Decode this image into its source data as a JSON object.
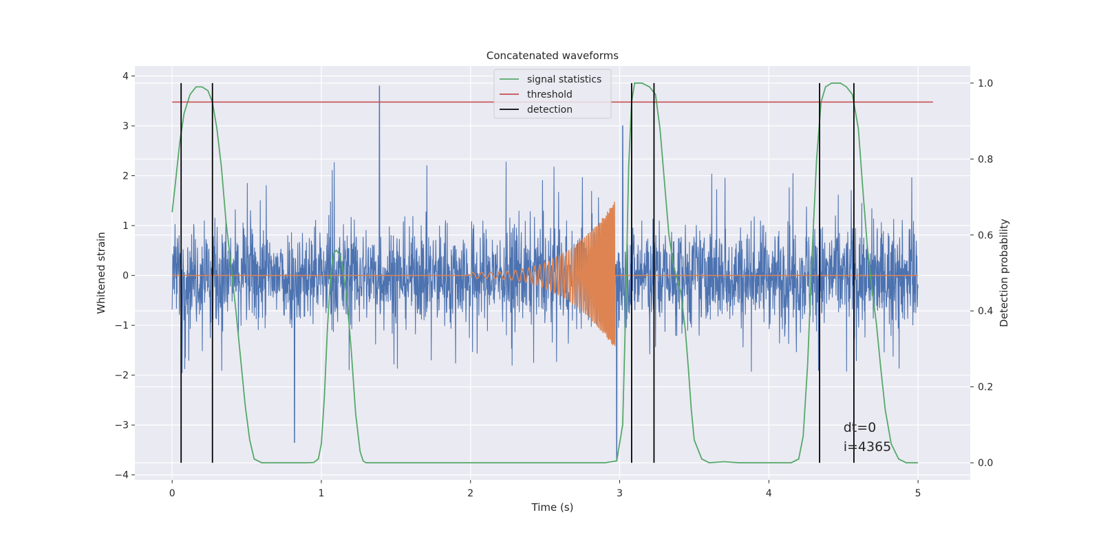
{
  "chart_data": {
    "type": "line",
    "title": "Concatenated waveforms",
    "xlabel": "Time (s)",
    "ylabel": "Whitened strain",
    "ylabel_right": "Detection probability",
    "xlim": [
      -0.25,
      5.35
    ],
    "ylim": [
      -4.1,
      4.2
    ],
    "ylim_right": [
      -0.045,
      1.045
    ],
    "xticks": [
      0,
      1,
      2,
      3,
      4,
      5
    ],
    "yticks": [
      -4,
      -3,
      -2,
      -1,
      0,
      1,
      2,
      3,
      4
    ],
    "yticks_right": [
      0.0,
      0.2,
      0.4,
      0.6,
      0.8,
      1.0
    ],
    "xtick_labels": [
      "0",
      "1",
      "2",
      "3",
      "4",
      "5"
    ],
    "ytick_labels": [
      "−4",
      "−3",
      "−2",
      "−1",
      "0",
      "1",
      "2",
      "3",
      "4"
    ],
    "ytick_right_labels": [
      "0.0",
      "0.2",
      "0.4",
      "0.6",
      "0.8",
      "1.0"
    ],
    "grid": true,
    "legend_position": "top-center",
    "colors": {
      "strain": "#4c72b0",
      "template": "#dd8452",
      "signal_statistics": "#55a868",
      "threshold": "#c44e52",
      "detection": "#000000",
      "axes_bg": "#eaeaf2",
      "grid": "#ffffff"
    },
    "legend": [
      {
        "label": "signal statistics",
        "color": "#55a868"
      },
      {
        "label": "threshold",
        "color": "#c44e52"
      },
      {
        "label": "detection",
        "color": "#000000"
      }
    ],
    "series": [
      {
        "name": "signal statistics",
        "axis": "right",
        "x": [
          0.0,
          0.02,
          0.05,
          0.08,
          0.12,
          0.16,
          0.2,
          0.24,
          0.27,
          0.3,
          0.33,
          0.36,
          0.4,
          0.43,
          0.46,
          0.49,
          0.52,
          0.55,
          0.6,
          0.7,
          0.8,
          0.9,
          0.95,
          0.98,
          1.0,
          1.02,
          1.04,
          1.06,
          1.08,
          1.1,
          1.12,
          1.14,
          1.17,
          1.2,
          1.23,
          1.26,
          1.28,
          1.3,
          1.35,
          1.5,
          2.0,
          2.5,
          2.9,
          2.98,
          3.02,
          3.04,
          3.06,
          3.08,
          3.1,
          3.15,
          3.2,
          3.24,
          3.27,
          3.3,
          3.33,
          3.36,
          3.38,
          3.41,
          3.44,
          3.46,
          3.48,
          3.5,
          3.55,
          3.6,
          3.7,
          3.8,
          4.0,
          4.15,
          4.2,
          4.23,
          4.26,
          4.29,
          4.32,
          4.35,
          4.38,
          4.42,
          4.48,
          4.52,
          4.56,
          4.6,
          4.63,
          4.66,
          4.69,
          4.72,
          4.75,
          4.78,
          4.82,
          4.87,
          4.92,
          5.0
        ],
        "values": [
          0.66,
          0.73,
          0.84,
          0.92,
          0.97,
          0.99,
          0.99,
          0.98,
          0.95,
          0.88,
          0.78,
          0.64,
          0.5,
          0.39,
          0.27,
          0.15,
          0.06,
          0.01,
          0.0,
          0.0,
          0.0,
          0.0,
          0.001,
          0.01,
          0.05,
          0.17,
          0.35,
          0.48,
          0.55,
          0.56,
          0.55,
          0.52,
          0.44,
          0.3,
          0.13,
          0.03,
          0.005,
          0.0,
          0.0,
          0.0,
          0.0,
          0.0,
          0.0,
          0.005,
          0.1,
          0.4,
          0.78,
          0.95,
          1.0,
          1.0,
          0.99,
          0.97,
          0.88,
          0.74,
          0.6,
          0.52,
          0.49,
          0.45,
          0.35,
          0.25,
          0.14,
          0.06,
          0.01,
          0.0,
          0.003,
          0.0,
          0.0,
          0.0,
          0.01,
          0.07,
          0.26,
          0.55,
          0.8,
          0.95,
          0.99,
          1.0,
          1.0,
          0.99,
          0.97,
          0.88,
          0.72,
          0.57,
          0.46,
          0.37,
          0.25,
          0.14,
          0.05,
          0.01,
          0.0,
          0.0
        ]
      },
      {
        "name": "threshold",
        "axis": "right",
        "x": [
          0.0,
          5.1
        ],
        "values": [
          0.95,
          0.95
        ]
      }
    ],
    "strain_envelope": {
      "x": [
        0.0,
        1.0,
        2.0,
        3.0,
        4.0,
        5.0
      ],
      "typical_max": [
        2.3,
        2.3,
        2.3,
        2.3,
        2.3,
        2.3
      ],
      "typical_min": [
        -2.0,
        -2.0,
        -2.0,
        -2.0,
        -2.0,
        -2.0
      ],
      "peaks": [
        {
          "x": 1.39,
          "y": 3.8
        },
        {
          "x": 0.82,
          "y": -3.35
        },
        {
          "x": 2.98,
          "y": -3.7
        },
        {
          "x": 3.02,
          "y": 3.0
        }
      ]
    },
    "template_chirp": {
      "x_start": 2.0,
      "x_end": 3.0,
      "amp_start": 0.06,
      "amp_peak": 1.5,
      "amp_min_peak": -1.3,
      "peak_x": 2.97
    },
    "detections_x": [
      0.06,
      0.27,
      3.08,
      3.23,
      4.34,
      4.57
    ],
    "annotations": [
      "dt=0",
      "i=4365"
    ],
    "annotation_position": {
      "x": 4.5,
      "y": -3.0
    }
  }
}
